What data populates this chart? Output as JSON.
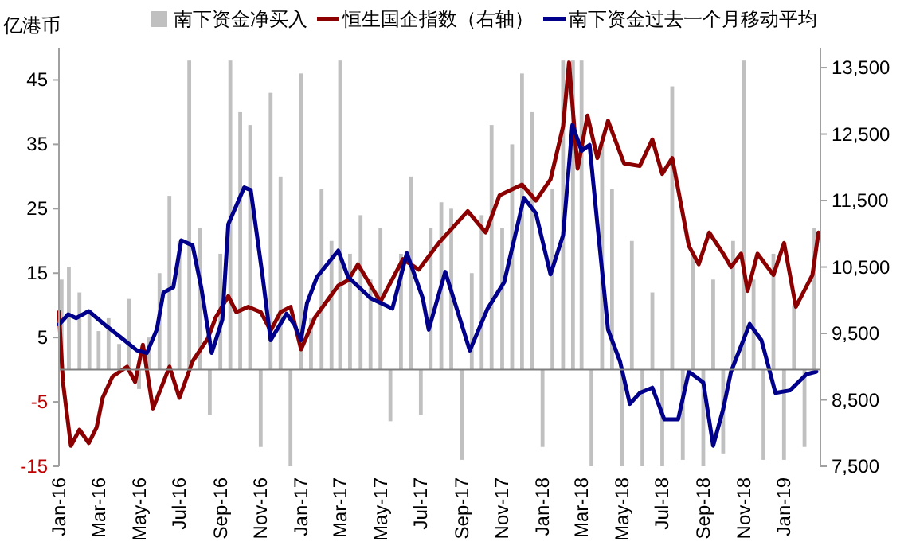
{
  "chart_data": {
    "type": "bar",
    "ylabel": "亿港币",
    "legend": "top",
    "xlim": [
      "2016-01-01",
      "2019-02-25"
    ],
    "xticks": [
      {
        "value": "2016-01-01",
        "label": "Jan-16"
      },
      {
        "value": "2016-03-01",
        "label": "Mar-16"
      },
      {
        "value": "2016-05-01",
        "label": "May-16"
      },
      {
        "value": "2016-07-01",
        "label": "Jul-16"
      },
      {
        "value": "2016-09-01",
        "label": "Sep-16"
      },
      {
        "value": "2016-11-01",
        "label": "Nov-16"
      },
      {
        "value": "2017-01-01",
        "label": "Jan-17"
      },
      {
        "value": "2017-03-01",
        "label": "Mar-17"
      },
      {
        "value": "2017-05-01",
        "label": "May-17"
      },
      {
        "value": "2017-07-01",
        "label": "Jul-17"
      },
      {
        "value": "2017-09-01",
        "label": "Sep-17"
      },
      {
        "value": "2017-11-01",
        "label": "Nov-17"
      },
      {
        "value": "2018-01-01",
        "label": "Jan-18"
      },
      {
        "value": "2018-03-01",
        "label": "Mar-18"
      },
      {
        "value": "2018-05-01",
        "label": "May-18"
      },
      {
        "value": "2018-07-01",
        "label": "Jul-18"
      },
      {
        "value": "2018-09-01",
        "label": "Sep-18"
      },
      {
        "value": "2018-11-01",
        "label": "Nov-18"
      },
      {
        "value": "2019-01-01",
        "label": "Jan-19"
      }
    ],
    "ylim": [
      -15,
      50
    ],
    "yticks": [
      -15,
      -5,
      5,
      15,
      25,
      35,
      45
    ],
    "y2lim": [
      7500,
      13800
    ],
    "y2ticks": [
      {
        "value": 7500,
        "label": "7,500"
      },
      {
        "value": 8500,
        "label": "8,500"
      },
      {
        "value": 9500,
        "label": "9,500"
      },
      {
        "value": 10500,
        "label": "10,500"
      },
      {
        "value": 11500,
        "label": "11,500"
      },
      {
        "value": 12500,
        "label": "12,500"
      },
      {
        "value": 13500,
        "label": "13,500"
      }
    ],
    "series": [
      {
        "name": "南下资金净买入",
        "color": "#c0c0c0",
        "x": [
          "2016-01-05",
          "2016-01-16",
          "2016-02-01",
          "2016-02-16",
          "2016-03-01",
          "2016-03-16",
          "2016-04-01",
          "2016-04-16",
          "2016-05-01",
          "2016-05-16",
          "2016-06-01",
          "2016-06-16",
          "2016-07-01",
          "2016-07-16",
          "2016-08-01",
          "2016-08-16",
          "2016-09-01",
          "2016-09-16",
          "2016-10-01",
          "2016-10-16",
          "2016-11-01",
          "2016-11-16",
          "2016-12-01",
          "2016-12-16",
          "2017-01-01",
          "2017-01-16",
          "2017-02-01",
          "2017-02-16",
          "2017-03-01",
          "2017-03-16",
          "2017-04-01",
          "2017-04-16",
          "2017-05-01",
          "2017-05-16",
          "2017-06-01",
          "2017-06-16",
          "2017-07-01",
          "2017-07-16",
          "2017-08-01",
          "2017-08-16",
          "2017-09-01",
          "2017-09-16",
          "2017-10-01",
          "2017-10-16",
          "2017-11-01",
          "2017-11-16",
          "2017-12-01",
          "2017-12-16",
          "2018-01-01",
          "2018-01-16",
          "2018-02-01",
          "2018-02-16",
          "2018-03-01",
          "2018-03-16",
          "2018-04-01",
          "2018-04-16",
          "2018-05-01",
          "2018-05-16",
          "2018-06-01",
          "2018-06-16",
          "2018-07-01",
          "2018-07-16",
          "2018-08-01",
          "2018-08-16",
          "2018-09-01",
          "2018-09-16",
          "2018-10-01",
          "2018-10-16",
          "2018-11-01",
          "2018-11-16",
          "2018-12-01",
          "2018-12-16",
          "2019-01-01",
          "2019-01-16",
          "2019-02-01",
          "2019-02-16"
        ],
        "values": [
          14,
          16,
          12,
          9,
          6,
          8,
          4,
          11,
          -3,
          5,
          15,
          27,
          20,
          48,
          22,
          -7,
          18,
          48,
          40,
          38,
          -12,
          43,
          30,
          -15,
          46,
          8,
          28,
          20,
          48,
          18,
          24,
          14,
          22,
          -8,
          18,
          30,
          -7,
          22,
          26,
          25,
          -14,
          15,
          24,
          38,
          22,
          35,
          46,
          40,
          -12,
          28,
          48,
          48,
          48,
          -15,
          35,
          28,
          -15,
          20,
          -15,
          12,
          -15,
          44,
          -14,
          18,
          -15,
          14,
          -13,
          20,
          48,
          14,
          -14,
          18,
          -14,
          10,
          -12,
          22
        ]
      },
      {
        "name": "恒生国企指数（右轴）",
        "type": "line",
        "axis": "y2",
        "color": "#8b0000",
        "x": [
          "2016-01-01",
          "2016-01-07",
          "2016-01-19",
          "2016-02-01",
          "2016-02-15",
          "2016-02-27",
          "2016-03-07",
          "2016-03-22",
          "2016-04-13",
          "2016-04-25",
          "2016-05-07",
          "2016-05-22",
          "2016-06-16",
          "2016-07-01",
          "2016-07-21",
          "2016-08-13",
          "2016-08-25",
          "2016-09-13",
          "2016-09-25",
          "2016-10-13",
          "2016-11-01",
          "2016-11-16",
          "2016-12-01",
          "2016-12-16",
          "2017-01-01",
          "2017-01-22",
          "2017-02-26",
          "2017-03-13",
          "2017-03-28",
          "2017-05-01",
          "2017-06-04",
          "2017-06-28",
          "2017-07-28",
          "2017-09-10",
          "2017-10-07",
          "2017-10-28",
          "2017-12-01",
          "2017-12-22",
          "2018-01-13",
          "2018-02-01",
          "2018-02-10",
          "2018-02-23",
          "2018-03-10",
          "2018-03-25",
          "2018-04-10",
          "2018-05-04",
          "2018-05-28",
          "2018-06-16",
          "2018-07-01",
          "2018-07-16",
          "2018-08-10",
          "2018-08-25",
          "2018-09-10",
          "2018-10-01",
          "2018-10-13",
          "2018-10-28",
          "2018-11-07",
          "2018-11-22",
          "2018-12-16",
          "2019-01-01",
          "2019-01-19",
          "2019-02-13",
          "2019-02-22"
        ],
        "values": [
          9820,
          8770,
          7810,
          8050,
          7850,
          8090,
          8530,
          8850,
          9000,
          8770,
          9330,
          8370,
          9000,
          8530,
          9080,
          9420,
          9740,
          10060,
          9820,
          9900,
          9820,
          9540,
          9820,
          9900,
          9260,
          9740,
          10220,
          10300,
          10540,
          9980,
          10620,
          10460,
          10860,
          11340,
          11020,
          11580,
          11740,
          11500,
          11820,
          12620,
          13580,
          11980,
          12780,
          12140,
          12700,
          12060,
          12020,
          12420,
          11900,
          12140,
          10820,
          10540,
          11020,
          10700,
          10500,
          10700,
          10140,
          10700,
          10380,
          10860,
          9900,
          10380,
          11020
        ]
      },
      {
        "name": "南下资金过去一个月移动平均",
        "type": "line",
        "color": "#00008b",
        "x": [
          "2016-01-01",
          "2016-01-15",
          "2016-01-27",
          "2016-02-15",
          "2016-03-10",
          "2016-04-04",
          "2016-04-28",
          "2016-05-13",
          "2016-05-28",
          "2016-06-07",
          "2016-06-22",
          "2016-07-04",
          "2016-07-21",
          "2016-08-03",
          "2016-08-19",
          "2016-09-04",
          "2016-09-13",
          "2016-10-07",
          "2016-10-17",
          "2016-11-04",
          "2016-11-16",
          "2016-12-10",
          "2016-12-22",
          "2017-01-01",
          "2017-01-10",
          "2017-01-25",
          "2017-02-26",
          "2017-03-13",
          "2017-04-16",
          "2017-05-19",
          "2017-06-10",
          "2017-07-04",
          "2017-07-13",
          "2017-08-07",
          "2017-09-13",
          "2017-10-10",
          "2017-11-04",
          "2017-12-04",
          "2017-12-22",
          "2018-01-13",
          "2018-02-01",
          "2018-02-15",
          "2018-03-01",
          "2018-03-13",
          "2018-03-25",
          "2018-04-10",
          "2018-04-28",
          "2018-05-13",
          "2018-05-28",
          "2018-06-16",
          "2018-07-04",
          "2018-07-25",
          "2018-08-10",
          "2018-09-01",
          "2018-09-16",
          "2018-10-01",
          "2018-10-13",
          "2018-11-10",
          "2018-11-28",
          "2018-12-19",
          "2019-01-10",
          "2019-02-04",
          "2019-02-19"
        ],
        "values": [
          7.0,
          8.6,
          8.0,
          9.1,
          7.0,
          5.0,
          3.0,
          2.6,
          6.3,
          12.0,
          12.8,
          20.1,
          19.3,
          12.8,
          2.6,
          7.8,
          22.6,
          28.3,
          27.9,
          14.4,
          4.6,
          8.7,
          7.0,
          4.6,
          10.3,
          14.4,
          18.5,
          14.4,
          11.1,
          9.5,
          18.1,
          11.1,
          6.2,
          15.2,
          3.0,
          9.5,
          13.6,
          26.7,
          24.3,
          14.8,
          20.9,
          38.0,
          34.0,
          34.9,
          22.6,
          6.2,
          1.3,
          -5.3,
          -3.6,
          -2.8,
          -7.7,
          -7.7,
          -0.3,
          -2.0,
          -11.8,
          -6.1,
          -0.3,
          7.1,
          4.6,
          -3.6,
          -3.2,
          -0.7,
          -0.3
        ]
      }
    ]
  }
}
